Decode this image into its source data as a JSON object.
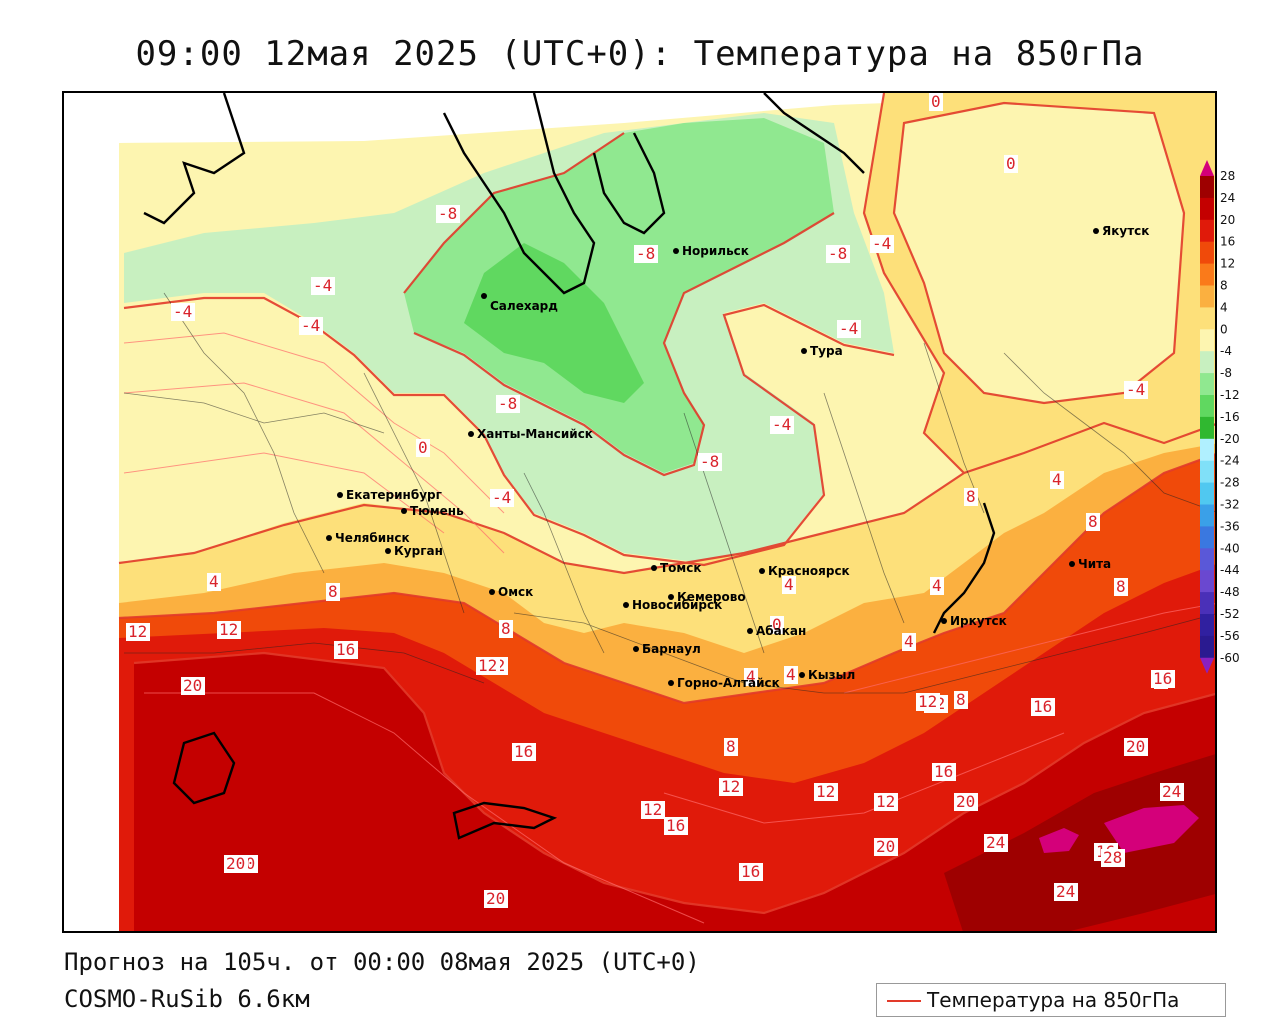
{
  "title": "09:00 12мая 2025 (UTC+0): Температура на 850гПа",
  "footer": {
    "forecast": "Прогноз на 105ч. от 00:00 08мая 2025 (UTC+0)",
    "model": "COSMO-RuSib 6.6км"
  },
  "legend": {
    "label": "Температура на 850гПа",
    "line_color": "#e23a2a"
  },
  "colorbar": {
    "ticks": [
      "28",
      "24",
      "20",
      "16",
      "12",
      "8",
      "4",
      "0",
      "-4",
      "-8",
      "-12",
      "-16",
      "-20",
      "-24",
      "-28",
      "-32",
      "-36",
      "-40",
      "-44",
      "-48",
      "-52",
      "-56",
      "-60"
    ],
    "colors": [
      "#d4007a",
      "#9e0000",
      "#c40000",
      "#e01a0a",
      "#f04a0a",
      "#fa7a1a",
      "#fbb040",
      "#fde07a",
      "#fdf5b0",
      "#c8f0c0",
      "#90e890",
      "#60d860",
      "#30b830",
      "#b0f0ff",
      "#80e0f8",
      "#50c8f0",
      "#3aa0e8",
      "#3a78e0",
      "#5a58d8",
      "#6a48d0",
      "#4a30b8",
      "#3020a0",
      "#2a1a90",
      "#8a20c0"
    ]
  },
  "cities": [
    {
      "name": "Якутск"
    },
    {
      "name": "Норильск"
    },
    {
      "name": "Салехард"
    },
    {
      "name": "Тура"
    },
    {
      "name": "Ханты-Мансийск"
    },
    {
      "name": "Екатеринбург"
    },
    {
      "name": "Тюмень"
    },
    {
      "name": "Челябинск"
    },
    {
      "name": "Курган"
    },
    {
      "name": "Омск"
    },
    {
      "name": "Новосибирск"
    },
    {
      "name": "Томск"
    },
    {
      "name": "Красноярск"
    },
    {
      "name": "Кемерово"
    },
    {
      "name": "Абакан"
    },
    {
      "name": "Барнаул"
    },
    {
      "name": "Горно-Алтайск"
    },
    {
      "name": "Кызыл"
    },
    {
      "name": "Иркутск"
    },
    {
      "name": "Чита"
    }
  ],
  "contour_labels": [
    "0",
    "-8",
    "-8",
    "-8",
    "-4",
    "-4",
    "-4",
    "-4",
    "-4",
    "-8",
    "-4",
    "0",
    "-8",
    "-4",
    "-4",
    "0",
    "-4",
    "4",
    "8",
    "8",
    "4",
    "4",
    "8",
    "8",
    "12",
    "12",
    "8",
    "0",
    "4",
    "4",
    "4",
    "8",
    "12",
    "4",
    "12",
    "8",
    "16",
    "16",
    "12",
    "20",
    "16",
    "8",
    "12",
    "12",
    "12",
    "20",
    "16",
    "12",
    "16",
    "20",
    "16",
    "12",
    "20",
    "20",
    "24",
    "24",
    "28",
    "16",
    "20",
    "16",
    "20",
    "24"
  ]
}
